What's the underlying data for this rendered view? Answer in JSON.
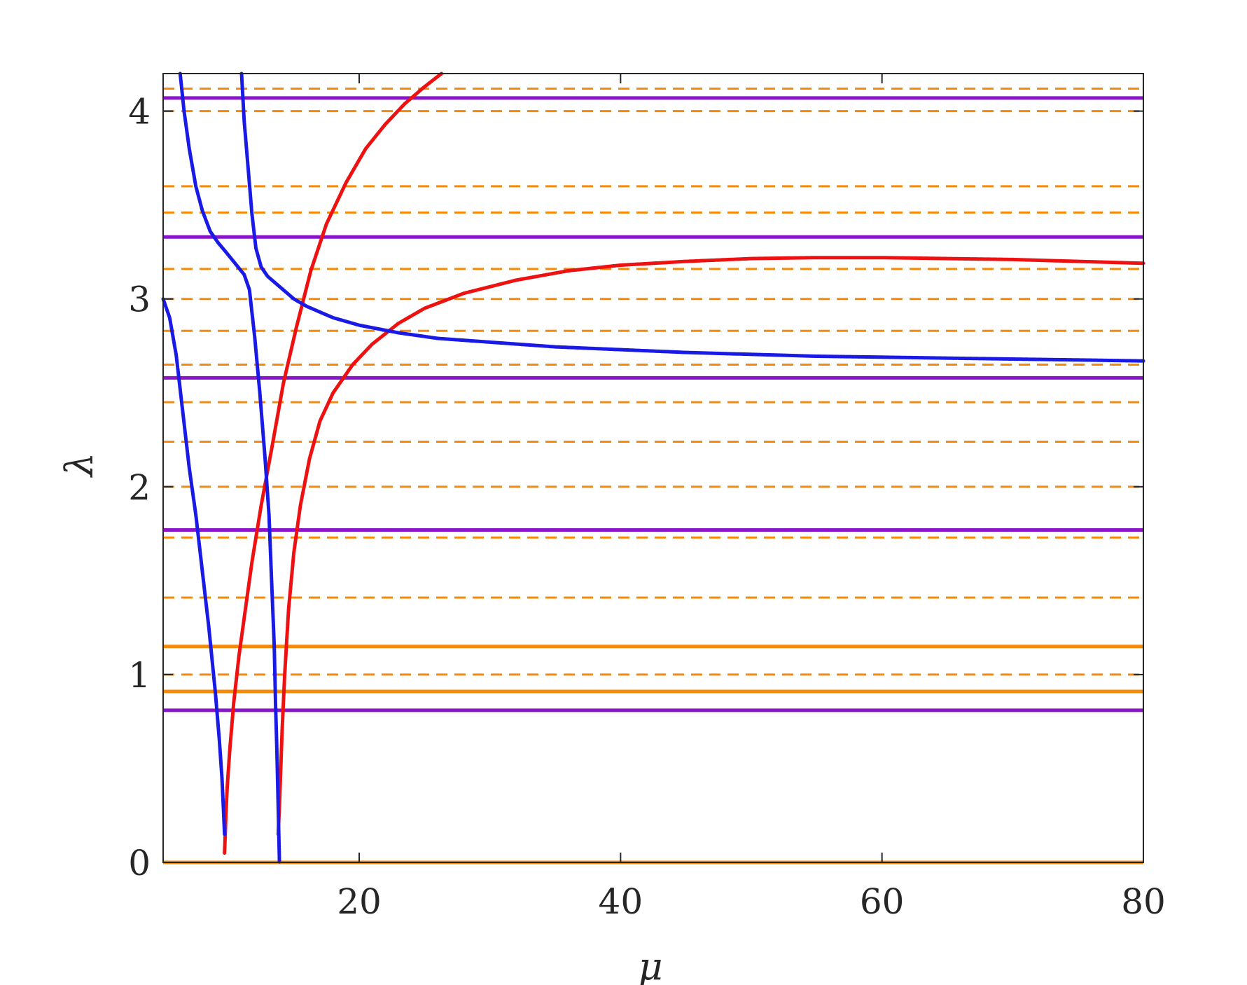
{
  "chart_data": {
    "type": "line",
    "xlabel": "μ",
    "ylabel": "λ",
    "xlim": [
      5,
      80
    ],
    "ylim": [
      0,
      4.2
    ],
    "x_ticks": [
      20,
      40,
      60,
      80
    ],
    "y_ticks": [
      0,
      1,
      2,
      3,
      4
    ],
    "grid": false,
    "legend": "none",
    "colors": {
      "red": "#ee1111",
      "blue": "#1a1ae6",
      "purple": "#8a14c8",
      "orange": "#f58a0a",
      "axis": "#262626"
    },
    "series": [
      {
        "color": "red",
        "style": "dots",
        "points": [
          [
            9.7,
            0.05
          ],
          [
            9.75,
            0.15
          ],
          [
            9.8,
            0.25
          ],
          [
            9.9,
            0.4
          ],
          [
            10.1,
            0.6
          ],
          [
            10.4,
            0.85
          ],
          [
            10.8,
            1.1
          ],
          [
            11.2,
            1.3
          ],
          [
            11.8,
            1.6
          ],
          [
            12.5,
            1.9
          ],
          [
            13.3,
            2.2
          ],
          [
            14.2,
            2.55
          ],
          [
            15.2,
            2.85
          ],
          [
            16.3,
            3.15
          ],
          [
            17.5,
            3.4
          ],
          [
            19.0,
            3.62
          ],
          [
            20.5,
            3.8
          ],
          [
            22.0,
            3.93
          ],
          [
            23.5,
            4.04
          ],
          [
            25.0,
            4.13
          ],
          [
            26.3,
            4.2
          ]
        ]
      },
      {
        "color": "red",
        "style": "dots",
        "points": [
          [
            13.8,
            0.15
          ],
          [
            13.9,
            0.3
          ],
          [
            14.0,
            0.5
          ],
          [
            14.1,
            0.7
          ],
          [
            14.3,
            1.0
          ],
          [
            14.6,
            1.35
          ],
          [
            15.0,
            1.65
          ],
          [
            15.5,
            1.9
          ],
          [
            16.2,
            2.15
          ],
          [
            17.0,
            2.35
          ],
          [
            18.0,
            2.5
          ],
          [
            19.5,
            2.65
          ],
          [
            21.0,
            2.76
          ],
          [
            23.0,
            2.87
          ],
          [
            25.0,
            2.95
          ],
          [
            28.0,
            3.03
          ],
          [
            32.0,
            3.1
          ],
          [
            36.0,
            3.15
          ],
          [
            40.0,
            3.18
          ],
          [
            45.0,
            3.2
          ],
          [
            50.0,
            3.215
          ],
          [
            55.0,
            3.22
          ],
          [
            60.0,
            3.22
          ],
          [
            65.0,
            3.215
          ],
          [
            70.0,
            3.21
          ],
          [
            75.0,
            3.2
          ],
          [
            80.0,
            3.19
          ]
        ]
      },
      {
        "color": "blue",
        "style": "dots",
        "points": [
          [
            5.0,
            3.0
          ],
          [
            5.5,
            2.9
          ],
          [
            6.0,
            2.7
          ],
          [
            6.5,
            2.4
          ],
          [
            7.0,
            2.1
          ],
          [
            7.5,
            1.85
          ],
          [
            8.0,
            1.55
          ],
          [
            8.5,
            1.25
          ],
          [
            9.0,
            0.9
          ],
          [
            9.3,
            0.65
          ],
          [
            9.5,
            0.45
          ],
          [
            9.6,
            0.3
          ],
          [
            9.7,
            0.15
          ]
        ]
      },
      {
        "color": "blue",
        "style": "dots",
        "points": [
          [
            6.3,
            4.2
          ],
          [
            6.6,
            4.0
          ],
          [
            7.0,
            3.8
          ],
          [
            7.5,
            3.6
          ],
          [
            8.0,
            3.47
          ],
          [
            8.6,
            3.36
          ],
          [
            9.2,
            3.3
          ],
          [
            9.8,
            3.25
          ],
          [
            10.5,
            3.19
          ],
          [
            11.2,
            3.13
          ],
          [
            11.6,
            3.05
          ],
          [
            12.0,
            2.8
          ],
          [
            12.4,
            2.5
          ],
          [
            12.8,
            2.15
          ],
          [
            13.1,
            1.85
          ],
          [
            13.3,
            1.5
          ],
          [
            13.5,
            1.15
          ],
          [
            13.6,
            0.85
          ],
          [
            13.7,
            0.6
          ],
          [
            13.8,
            0.3
          ],
          [
            13.85,
            0.15
          ],
          [
            13.9,
            0.0
          ]
        ]
      },
      {
        "color": "blue",
        "style": "dots",
        "points": [
          [
            11.0,
            4.2
          ],
          [
            11.2,
            3.95
          ],
          [
            11.5,
            3.7
          ],
          [
            11.8,
            3.45
          ],
          [
            12.1,
            3.27
          ],
          [
            12.5,
            3.17
          ],
          [
            13.0,
            3.12
          ],
          [
            14.0,
            3.06
          ],
          [
            15.0,
            3.0
          ],
          [
            16.0,
            2.96
          ],
          [
            18.0,
            2.9
          ],
          [
            20.0,
            2.86
          ],
          [
            23.0,
            2.82
          ],
          [
            26.0,
            2.79
          ],
          [
            30.0,
            2.77
          ],
          [
            35.0,
            2.745
          ],
          [
            40.0,
            2.73
          ],
          [
            45.0,
            2.715
          ],
          [
            50.0,
            2.705
          ],
          [
            55.0,
            2.695
          ],
          [
            60.0,
            2.69
          ],
          [
            65.0,
            2.685
          ],
          [
            70.0,
            2.68
          ],
          [
            75.0,
            2.675
          ],
          [
            80.0,
            2.67
          ]
        ]
      }
    ],
    "horizontal_lines": [
      {
        "color": "purple",
        "style": "solid",
        "y": 0.81
      },
      {
        "color": "purple",
        "style": "solid",
        "y": 1.77
      },
      {
        "color": "purple",
        "style": "solid",
        "y": 2.58
      },
      {
        "color": "purple",
        "style": "solid",
        "y": 3.33
      },
      {
        "color": "purple",
        "style": "solid",
        "y": 4.07
      },
      {
        "color": "orange",
        "style": "solid",
        "y": 0.0
      },
      {
        "color": "orange",
        "style": "solid",
        "y": 0.91
      },
      {
        "color": "orange",
        "style": "solid",
        "y": 1.15
      },
      {
        "color": "orange",
        "style": "dashed",
        "y": 1.0
      },
      {
        "color": "orange",
        "style": "dashed",
        "y": 1.41
      },
      {
        "color": "orange",
        "style": "dashed",
        "y": 1.73
      },
      {
        "color": "orange",
        "style": "dashed",
        "y": 2.0
      },
      {
        "color": "orange",
        "style": "dashed",
        "y": 2.24
      },
      {
        "color": "orange",
        "style": "dashed",
        "y": 2.45
      },
      {
        "color": "orange",
        "style": "dashed",
        "y": 2.65
      },
      {
        "color": "orange",
        "style": "dashed",
        "y": 2.83
      },
      {
        "color": "orange",
        "style": "dashed",
        "y": 3.0
      },
      {
        "color": "orange",
        "style": "dashed",
        "y": 3.16
      },
      {
        "color": "orange",
        "style": "dashed",
        "y": 3.46
      },
      {
        "color": "orange",
        "style": "dashed",
        "y": 3.6
      },
      {
        "color": "orange",
        "style": "dashed",
        "y": 4.0
      },
      {
        "color": "orange",
        "style": "dashed",
        "y": 4.12
      }
    ]
  }
}
